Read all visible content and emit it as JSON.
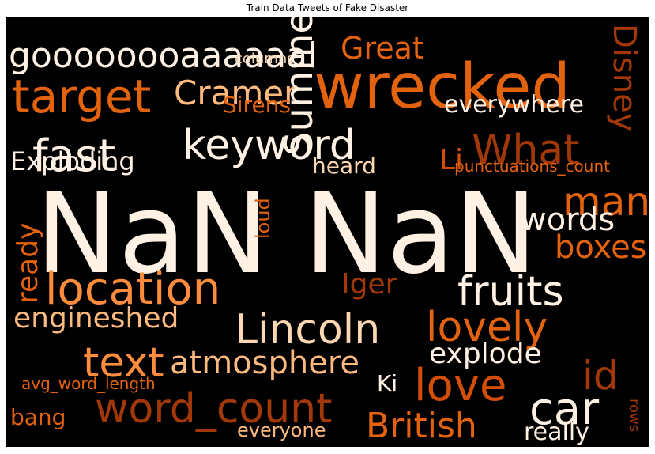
{
  "chart_data": {
    "type": "wordcloud",
    "title": "Train Data Tweets of Fake Disaster",
    "background": "#000000",
    "colormap": "Oranges",
    "words": [
      {
        "text": "NaN NaN",
        "shade": "#fff1e3"
      },
      {
        "text": "wrecked",
        "shade": "#e3620e"
      },
      {
        "text": "goooooooaaaaaal",
        "shade": "#fff1e3"
      },
      {
        "text": "target",
        "shade": "#e3620e"
      },
      {
        "text": "Cramer",
        "shade": "#fdb97e"
      },
      {
        "text": "Great",
        "shade": "#e3620e"
      },
      {
        "text": "Disney",
        "shade": "#a23807"
      },
      {
        "text": "columns",
        "shade": "#fdd7b2"
      },
      {
        "text": "Sirens",
        "shade": "#e3620e"
      },
      {
        "text": "everywhere",
        "shade": "#fff1e3"
      },
      {
        "text": "fast",
        "shade": "#fff1e3"
      },
      {
        "text": "keyword",
        "shade": "#fff1e3"
      },
      {
        "text": "What",
        "shade": "#a23807"
      },
      {
        "text": "Li",
        "shade": "#d24e06"
      },
      {
        "text": "punctuations_count",
        "shade": "#e3620e"
      },
      {
        "text": "Exploding",
        "shade": "#fff1e3"
      },
      {
        "text": "heard",
        "shade": "#fdd7b2"
      },
      {
        "text": "Summer",
        "shade": "#fff1e3"
      },
      {
        "text": "loud",
        "shade": "#e3620e"
      },
      {
        "text": "man",
        "shade": "#e3620e"
      },
      {
        "text": "words",
        "shade": "#fff1e3"
      },
      {
        "text": "boxes",
        "shade": "#e3620e"
      },
      {
        "text": "ready",
        "shade": "#e3620e"
      },
      {
        "text": "location",
        "shade": "#fd8d3c"
      },
      {
        "text": "Iger",
        "shade": "#a23807"
      },
      {
        "text": "fruits",
        "shade": "#fff1e3"
      },
      {
        "text": "engineshed",
        "shade": "#fdb97e"
      },
      {
        "text": "Lincoln",
        "shade": "#fdd7b2"
      },
      {
        "text": "lovely",
        "shade": "#e3620e"
      },
      {
        "text": "text",
        "shade": "#fd8d3c"
      },
      {
        "text": "atmosphere",
        "shade": "#fdb97e"
      },
      {
        "text": "explode",
        "shade": "#fff1e3"
      },
      {
        "text": "id",
        "shade": "#a23807"
      },
      {
        "text": "Ki",
        "shade": "#fff1e3"
      },
      {
        "text": "love",
        "shade": "#d24e06"
      },
      {
        "text": "avg_word_length",
        "shade": "#e3620e"
      },
      {
        "text": "word_count",
        "shade": "#a23807"
      },
      {
        "text": "car",
        "shade": "#fff1e3"
      },
      {
        "text": "bang",
        "shade": "#e3620e"
      },
      {
        "text": "everyone",
        "shade": "#fdb97e"
      },
      {
        "text": "British",
        "shade": "#e3620e"
      },
      {
        "text": "really",
        "shade": "#fff1e3"
      },
      {
        "text": "rows",
        "shade": "#a23807"
      }
    ]
  }
}
